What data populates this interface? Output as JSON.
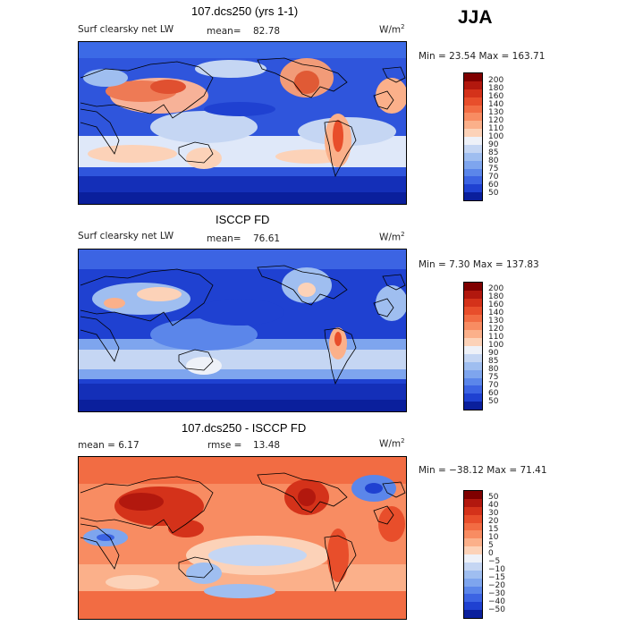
{
  "season": "JJA",
  "panels": [
    {
      "title": "107.dcs250 (yrs 1-1)",
      "left_label": "Surf clearsky net LW",
      "stat_label": "mean=",
      "stat_value": "82.78",
      "units": "W/m",
      "units_sup": "2",
      "minmax": "Min =  23.54 Max = 163.71",
      "colorbar": {
        "labels": [
          "200",
          "180",
          "160",
          "140",
          "130",
          "120",
          "110",
          "100",
          "90",
          "85",
          "80",
          "75",
          "70",
          "60",
          "50"
        ],
        "colors": [
          "#7f0000",
          "#b2180e",
          "#d4321a",
          "#e84e2b",
          "#f26c43",
          "#f88c62",
          "#fbb08a",
          "#fcd2b8",
          "#eef1f8",
          "#c5d6f3",
          "#9fbef0",
          "#7ea5ee",
          "#5b86ea",
          "#3c64e3",
          "#1f41d1",
          "#0a1f9c"
        ]
      }
    },
    {
      "title": "ISCCP FD",
      "left_label": "Surf clearsky net LW",
      "stat_label": "mean=",
      "stat_value": "76.61",
      "units": "W/m",
      "units_sup": "2",
      "minmax": "Min =   7.30 Max = 137.83",
      "colorbar": {
        "labels": [
          "200",
          "180",
          "160",
          "140",
          "130",
          "120",
          "110",
          "100",
          "90",
          "85",
          "80",
          "75",
          "70",
          "60",
          "50"
        ],
        "colors": [
          "#7f0000",
          "#b2180e",
          "#d4321a",
          "#e84e2b",
          "#f26c43",
          "#f88c62",
          "#fbb08a",
          "#fcd2b8",
          "#eef1f8",
          "#c5d6f3",
          "#9fbef0",
          "#7ea5ee",
          "#5b86ea",
          "#3c64e3",
          "#1f41d1",
          "#0a1f9c"
        ]
      }
    },
    {
      "title": "107.dcs250 - ISCCP FD",
      "left_label": "mean =   6.17",
      "stat_label": "rmse =",
      "stat_value": "13.48",
      "units": "W/m",
      "units_sup": "2",
      "minmax": "Min = −38.12 Max =  71.41",
      "colorbar": {
        "labels": [
          "50",
          "40",
          "30",
          "20",
          "15",
          "10",
          "5",
          "0",
          "−5",
          "−10",
          "−15",
          "−20",
          "−30",
          "−40",
          "−50"
        ],
        "colors": [
          "#7f0000",
          "#b2180e",
          "#d4321a",
          "#e84e2b",
          "#f26c43",
          "#f88c62",
          "#fbb08a",
          "#fcd2b8",
          "#eef1f8",
          "#c5d6f3",
          "#9fbef0",
          "#7ea5ee",
          "#5b86ea",
          "#3c64e3",
          "#1f41d1",
          "#0a1f9c"
        ]
      }
    }
  ]
}
